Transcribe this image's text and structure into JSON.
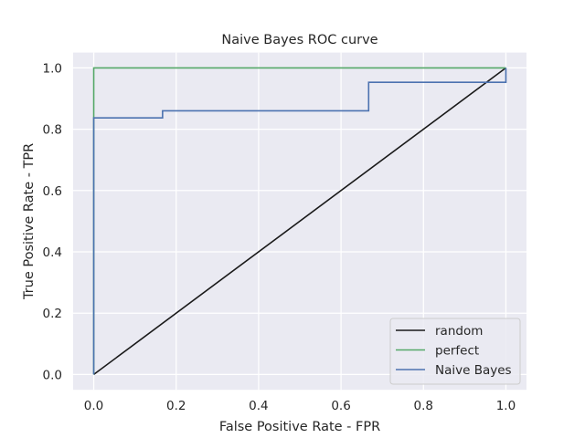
{
  "chart_data": {
    "type": "line",
    "title": "Naive Bayes ROC curve",
    "xlabel": "False Positive Rate - FPR",
    "ylabel": "True Positive Rate - TPR",
    "xlim": [
      -0.05,
      1.05
    ],
    "ylim": [
      -0.05,
      1.05
    ],
    "xticks": [
      0.0,
      0.2,
      0.4,
      0.6,
      0.8,
      1.0
    ],
    "xtick_labels": [
      "0.0",
      "0.2",
      "0.4",
      "0.6",
      "0.8",
      "1.0"
    ],
    "yticks": [
      0.0,
      0.2,
      0.4,
      0.6,
      0.8,
      1.0
    ],
    "ytick_labels": [
      "0.0",
      "0.2",
      "0.4",
      "0.6",
      "0.8",
      "1.0"
    ],
    "grid": true,
    "legend_position": "lower-right",
    "series": [
      {
        "name": "random",
        "color": "#1a1a1a",
        "x": [
          0,
          1
        ],
        "y": [
          0,
          1
        ]
      },
      {
        "name": "perfect",
        "color": "#55a868",
        "x": [
          0,
          0,
          1
        ],
        "y": [
          0,
          1,
          1
        ]
      },
      {
        "name": "Naive Bayes",
        "color": "#4c72b0",
        "x": [
          0,
          0,
          0.167,
          0.167,
          0.667,
          0.667,
          1.0,
          1.0
        ],
        "y": [
          0,
          0.837,
          0.837,
          0.86,
          0.86,
          0.953,
          0.953,
          1.0
        ]
      }
    ]
  }
}
